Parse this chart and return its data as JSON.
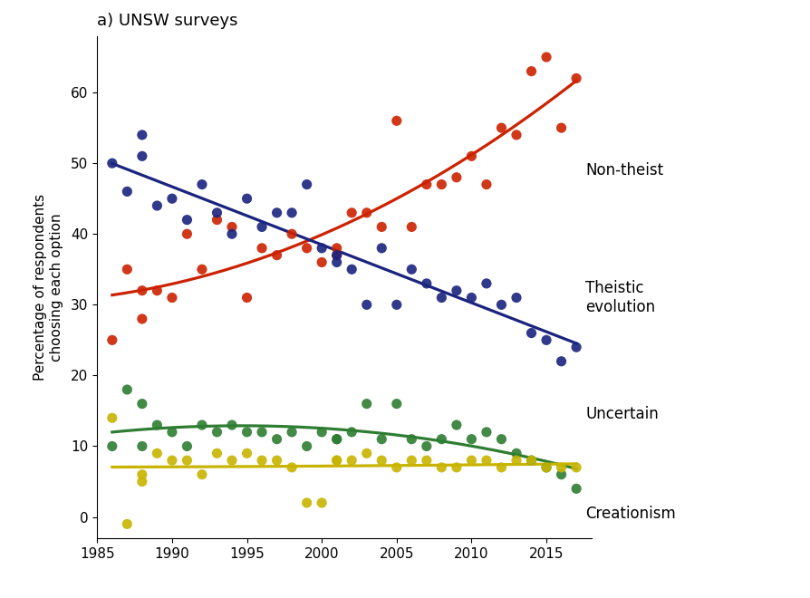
{
  "title": "a) UNSW surveys",
  "ylabel": "Percentage of respondents\nchoosing each option",
  "xlabel": "",
  "xlim": [
    1985,
    2018
  ],
  "ylim": [
    -3,
    68
  ],
  "yticks": [
    0,
    10,
    20,
    30,
    40,
    50,
    60
  ],
  "xticks": [
    1985,
    1990,
    1995,
    2000,
    2005,
    2010,
    2015
  ],
  "background_color": "#ffffff",
  "non_theist": {
    "color": "#cc2200",
    "label": "Non-theist",
    "x": [
      1986,
      1987,
      1988,
      1988,
      1989,
      1990,
      1991,
      1992,
      1993,
      1994,
      1995,
      1996,
      1997,
      1998,
      1999,
      2000,
      2001,
      2001,
      2002,
      2003,
      2004,
      2005,
      2006,
      2007,
      2008,
      2009,
      2010,
      2011,
      2012,
      2013,
      2014,
      2015,
      2016,
      2017
    ],
    "y": [
      25,
      35,
      32,
      28,
      32,
      31,
      40,
      35,
      42,
      41,
      31,
      38,
      37,
      40,
      38,
      36,
      38,
      37,
      43,
      43,
      41,
      56,
      41,
      47,
      47,
      48,
      51,
      47,
      55,
      54,
      63,
      65,
      55,
      62
    ]
  },
  "theistic": {
    "color": "#1a237e",
    "label": "Theistic\nevolution",
    "x": [
      1986,
      1987,
      1988,
      1988,
      1989,
      1990,
      1991,
      1992,
      1993,
      1994,
      1995,
      1996,
      1997,
      1998,
      1999,
      2000,
      2001,
      2001,
      2002,
      2003,
      2004,
      2005,
      2006,
      2007,
      2008,
      2009,
      2010,
      2011,
      2012,
      2013,
      2014,
      2015,
      2016,
      2017
    ],
    "y": [
      50,
      46,
      51,
      54,
      44,
      45,
      42,
      47,
      43,
      40,
      45,
      41,
      43,
      43,
      47,
      38,
      37,
      36,
      35,
      30,
      38,
      30,
      35,
      33,
      31,
      32,
      31,
      33,
      30,
      31,
      26,
      25,
      22,
      24
    ]
  },
  "uncertain": {
    "color": "#2e7d32",
    "label": "Uncertain",
    "x": [
      1986,
      1987,
      1988,
      1988,
      1989,
      1990,
      1991,
      1992,
      1993,
      1994,
      1995,
      1996,
      1997,
      1998,
      1999,
      2000,
      2001,
      2001,
      2002,
      2003,
      2004,
      2005,
      2006,
      2007,
      2008,
      2009,
      2010,
      2011,
      2012,
      2013,
      2014,
      2015,
      2016,
      2017
    ],
    "y": [
      10,
      18,
      16,
      10,
      13,
      12,
      10,
      13,
      12,
      13,
      12,
      12,
      11,
      12,
      10,
      12,
      11,
      11,
      12,
      16,
      11,
      16,
      11,
      10,
      11,
      13,
      11,
      12,
      11,
      9,
      8,
      7,
      6,
      4
    ]
  },
  "creationism": {
    "color": "#c8b400",
    "label": "Creationism",
    "x": [
      1986,
      1987,
      1988,
      1988,
      1989,
      1990,
      1991,
      1992,
      1993,
      1994,
      1995,
      1996,
      1997,
      1998,
      1999,
      2000,
      2001,
      2001,
      2002,
      2003,
      2004,
      2005,
      2006,
      2007,
      2008,
      2009,
      2010,
      2011,
      2012,
      2013,
      2014,
      2015,
      2016,
      2017
    ],
    "y": [
      14,
      -1,
      5,
      6,
      9,
      8,
      8,
      6,
      9,
      8,
      9,
      8,
      8,
      7,
      2,
      2,
      8,
      8,
      8,
      9,
      8,
      7,
      8,
      8,
      7,
      7,
      8,
      8,
      7,
      8,
      8,
      7,
      7,
      7
    ]
  },
  "conf_color": "#bbbbbb",
  "conf_alpha": 0.5,
  "dot_size": 65,
  "dot_alpha": 0.9,
  "line_width": 2.3,
  "title_fontsize": 13,
  "label_fontsize": 11,
  "annot_fontsize": 12,
  "tick_fontsize": 11
}
